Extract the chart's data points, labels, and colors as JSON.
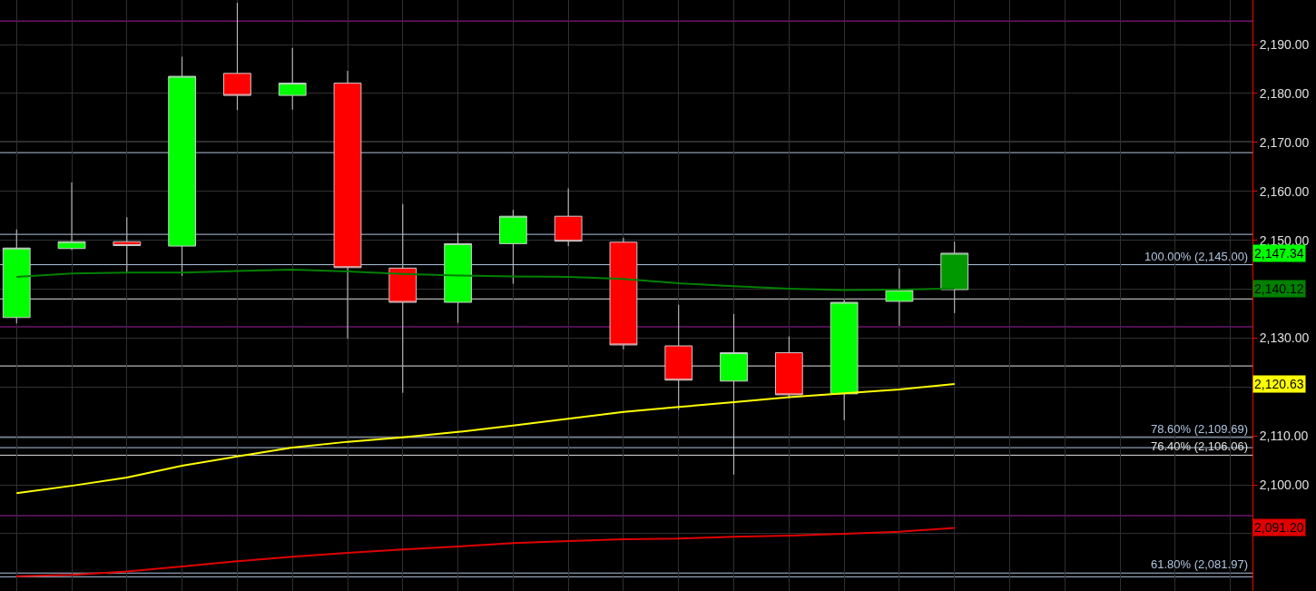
{
  "chart_data": {
    "type": "candlestick",
    "categories": [
      null,
      null,
      null,
      null,
      null,
      null,
      null,
      null,
      null,
      null,
      null,
      null,
      null,
      null,
      null,
      null,
      null,
      null,
      null,
      null,
      null,
      null,
      null
    ],
    "ohlc": [
      [
        2134.2,
        2152.2,
        2133.0,
        2148.4
      ],
      [
        2148.3,
        2161.8,
        2148.0,
        2149.7
      ],
      [
        2149.7,
        2154.7,
        2143.4,
        2148.9
      ],
      [
        2148.8,
        2187.5,
        2142.7,
        2183.5
      ],
      [
        2184.1,
        2198.5,
        2176.6,
        2179.6
      ],
      [
        2179.6,
        2189.3,
        2176.7,
        2182.1
      ],
      [
        2182.1,
        2184.6,
        2129.9,
        2144.4
      ],
      [
        2144.3,
        2157.4,
        2118.8,
        2137.3
      ],
      [
        2137.3,
        2151.5,
        2133.1,
        2149.3
      ],
      [
        2149.3,
        2156.2,
        2141.1,
        2154.9
      ],
      [
        2154.9,
        2160.6,
        2148.8,
        2149.8
      ],
      [
        2149.6,
        2150.5,
        2127.7,
        2128.6
      ],
      [
        2128.4,
        2136.8,
        2115.3,
        2121.4
      ],
      [
        2121.2,
        2134.9,
        2102.1,
        2127.0
      ],
      [
        2127.0,
        2130.3,
        2117.7,
        2118.4
      ],
      [
        2118.6,
        2137.9,
        2113.2,
        2137.3
      ],
      [
        2137.5,
        2144.2,
        2132.5,
        2139.8
      ],
      [
        2139.9,
        2149.7,
        2135.1,
        2147.34
      ],
      null,
      null,
      null,
      null,
      null
    ],
    "colors": [
      "#00ff00",
      "#00ff00",
      "#ff0000",
      "#00ff00",
      "#ff0000",
      "#00ff00",
      "#ff0000",
      "#ff0000",
      "#00ff00",
      "#00ff00",
      "#ff0000",
      "#ff0000",
      "#ff0000",
      "#00ff00",
      "#ff0000",
      "#00ff00",
      "#00ff00",
      "#009900",
      null,
      null,
      null,
      null,
      null
    ],
    "series": [
      {
        "type": "line",
        "color": "#008000",
        "values": [
          2142.5,
          2143.2,
          2143.4,
          2143.4,
          2143.7,
          2144.0,
          2143.6,
          2143.1,
          2142.8,
          2142.6,
          2142.5,
          2142.1,
          2141.2,
          2140.6,
          2140.1,
          2139.8,
          2139.9,
          2140.12,
          null,
          null,
          null,
          null,
          null
        ]
      },
      {
        "type": "line",
        "color": "#ffff00",
        "values": [
          2098.3,
          2099.8,
          2101.5,
          2103.9,
          2105.8,
          2107.6,
          2108.8,
          2109.7,
          2110.8,
          2112.1,
          2113.5,
          2114.9,
          2115.9,
          2116.9,
          2117.9,
          2118.7,
          2119.5,
          2120.63,
          null,
          null,
          null,
          null,
          null
        ]
      },
      {
        "type": "line",
        "color": "#e00000",
        "values": [
          2081.3,
          2081.6,
          2082.3,
          2083.3,
          2084.4,
          2085.3,
          2086.1,
          2086.8,
          2087.4,
          2088.1,
          2088.5,
          2088.9,
          2089.0,
          2089.4,
          2089.6,
          2090.0,
          2090.4,
          2091.2,
          null,
          null,
          null,
          null,
          null
        ]
      }
    ],
    "annotations": [
      "2,147.34",
      "2,140.12",
      "2,120.63",
      "2,091.20"
    ],
    "ylim": [
      2078.3,
      2199.1
    ],
    "yticks": [
      {
        "value": 2090,
        "label": null
      },
      {
        "value": 2100,
        "label": "2,100.00"
      },
      {
        "value": 2110,
        "label": "2,110.00"
      },
      {
        "value": 2120,
        "label": null
      },
      {
        "value": 2130,
        "label": "2,130.00"
      },
      {
        "value": 2140,
        "label": null
      },
      {
        "value": 2150,
        "label": "2,150.00"
      },
      {
        "value": 2160,
        "label": "2,160.00"
      },
      {
        "value": 2170,
        "label": "2,170.00"
      },
      {
        "value": 2180,
        "label": "2,180.00"
      },
      {
        "value": 2190,
        "label": "2,190.00"
      }
    ],
    "ref_lines": [
      {
        "axis": "y",
        "value": 2194.8,
        "color": "#a020a0"
      },
      {
        "axis": "y",
        "value": 2170.1,
        "color": "#b0c4de"
      },
      {
        "axis": "y",
        "value": 2167.9,
        "color": "#b0c4de"
      },
      {
        "axis": "y",
        "value": 2151.2,
        "color": "#b0c4de"
      },
      {
        "axis": "y",
        "value": 2145.0,
        "color": "#b0c4de",
        "label": "100.00% (2,145.00)"
      },
      {
        "axis": "y",
        "value": 2138.0,
        "color": "#e0e0e0"
      },
      {
        "axis": "y",
        "value": 2132.3,
        "color": "#a020a0"
      },
      {
        "axis": "y",
        "value": 2124.3,
        "color": "#e0e0e0"
      },
      {
        "axis": "y",
        "value": 2109.69,
        "color": "#b0c4de",
        "label": "78.60% (2,109.69)"
      },
      {
        "axis": "y",
        "value": 2107.6,
        "color": "#b0c4de"
      },
      {
        "axis": "y",
        "value": 2106.06,
        "color": "#e0e0e0",
        "label": "76.40% (2,106.06)"
      },
      {
        "axis": "y",
        "value": 2093.7,
        "color": "#a020a0"
      },
      {
        "axis": "y",
        "value": 2081.97,
        "color": "#b0c4de",
        "label": "61.80% (2,081.97)"
      },
      {
        "axis": "y",
        "value": 2081.2,
        "color": "#b0c4de"
      }
    ],
    "grid": true,
    "tick_labels": "y"
  }
}
